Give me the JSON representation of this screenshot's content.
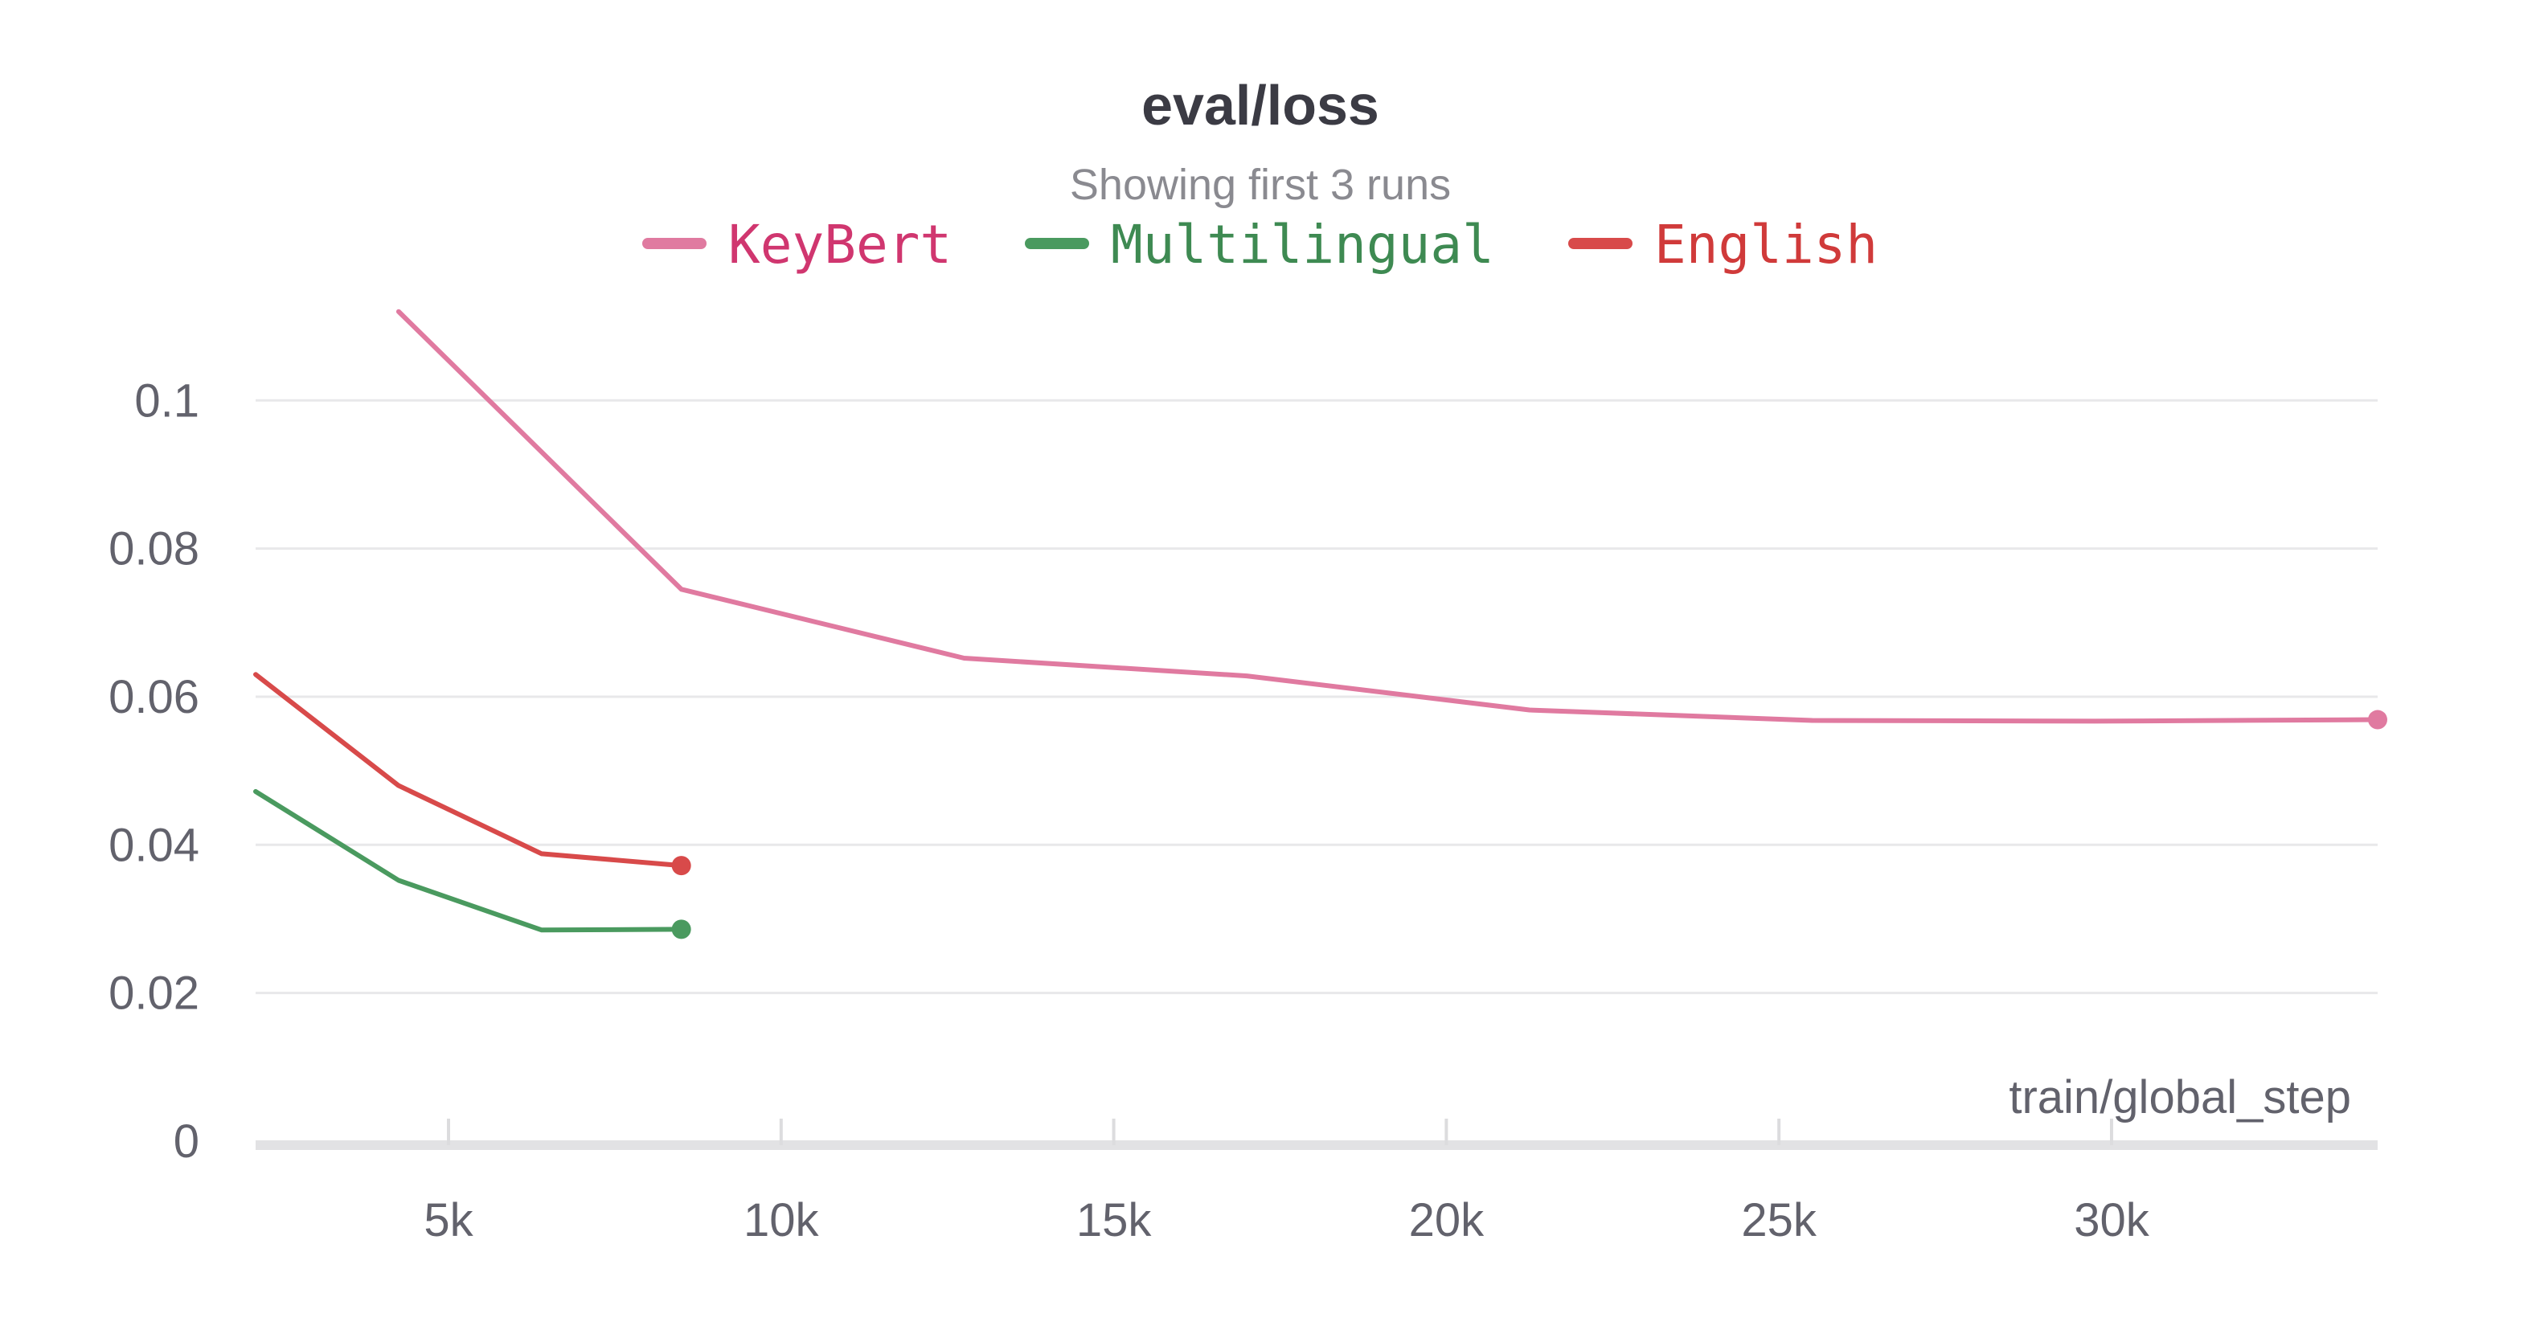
{
  "chart_data": {
    "type": "line",
    "title": "eval/loss",
    "subtitle": "Showing first 3 runs",
    "xlabel": "train/global_step",
    "ylabel": "",
    "xlim": [
      2100,
      34000
    ],
    "ylim": [
      0,
      0.115
    ],
    "x_ticks": [
      5000,
      10000,
      15000,
      20000,
      25000,
      30000
    ],
    "x_tick_labels": [
      "5k",
      "10k",
      "15k",
      "20k",
      "25k",
      "30k"
    ],
    "y_ticks": [
      0,
      0.02,
      0.04,
      0.06,
      0.08,
      0.1
    ],
    "y_tick_labels": [
      "0",
      "0.02",
      "0.04",
      "0.06",
      "0.08",
      "0.1"
    ],
    "grid": true,
    "legend_position": "top",
    "series": [
      {
        "name": "KeyBert",
        "color": "#e07aa0",
        "label_color": "#d0366f",
        "x": [
          4250,
          8500,
          12750,
          17000,
          21250,
          25500,
          29750,
          34000
        ],
        "y": [
          0.112,
          0.0745,
          0.0652,
          0.0628,
          0.0582,
          0.0568,
          0.0567,
          0.0569
        ]
      },
      {
        "name": "Multilingual",
        "color": "#4a9a5f",
        "label_color": "#3e8a52",
        "x": [
          2100,
          4250,
          6400,
          8500
        ],
        "y": [
          0.0472,
          0.0352,
          0.0285,
          0.0286
        ]
      },
      {
        "name": "English",
        "color": "#d84a4a",
        "label_color": "#d03a3a",
        "x": [
          2100,
          4250,
          6400,
          8500
        ],
        "y": [
          0.063,
          0.048,
          0.0388,
          0.0372
        ]
      }
    ]
  }
}
